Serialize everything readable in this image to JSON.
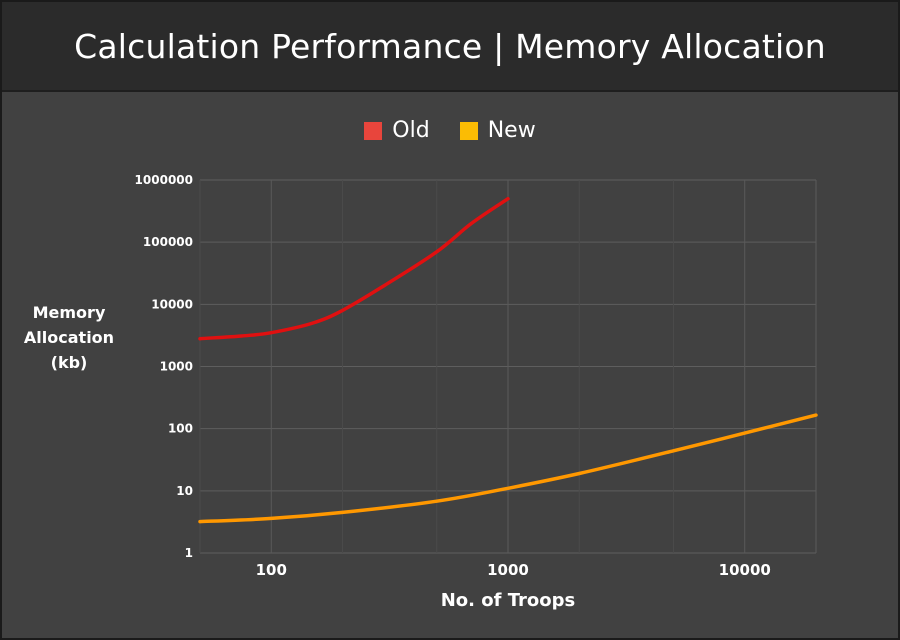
{
  "chart_data": {
    "type": "line",
    "title": "Calculation Performance | Memory Allocation",
    "xlabel": "No. of Troops",
    "ylabel": [
      "Memory",
      "Allocation",
      "(kb)"
    ],
    "x_scale": "log",
    "y_scale": "log",
    "xlim": [
      50,
      20000
    ],
    "ylim": [
      1,
      1000000
    ],
    "x_ticks": [
      100,
      1000,
      10000
    ],
    "x_tick_labels": [
      "100",
      "1000",
      "10000"
    ],
    "y_ticks": [
      1,
      10,
      100,
      1000,
      10000,
      100000,
      1000000
    ],
    "y_tick_labels": [
      "1",
      "10",
      "100",
      "1000",
      "10000",
      "100000",
      "1000000"
    ],
    "grid": true,
    "legend_position": "top",
    "series": [
      {
        "name": "Old",
        "color": "#e01010",
        "legend_color": "#e8453c",
        "x": [
          50,
          75,
          100,
          150,
          200,
          300,
          500,
          700,
          1000
        ],
        "y": [
          2800,
          3100,
          3500,
          5000,
          8000,
          20000,
          70000,
          200000,
          500000
        ]
      },
      {
        "name": "New",
        "color": "#ff9800",
        "legend_color": "#fbbc04",
        "x": [
          50,
          100,
          200,
          500,
          1000,
          2000,
          5000,
          10000,
          20000
        ],
        "y": [
          3.2,
          3.6,
          4.5,
          6.8,
          11,
          19,
          44,
          85,
          165
        ]
      }
    ]
  }
}
